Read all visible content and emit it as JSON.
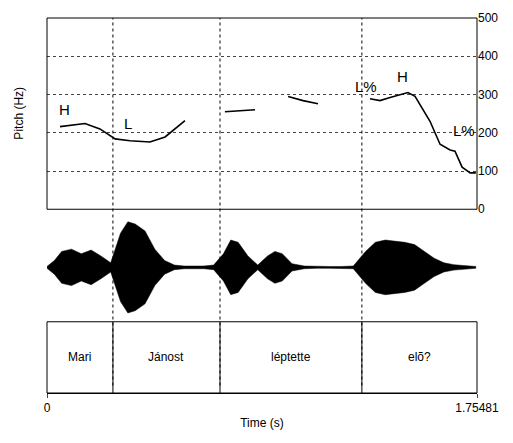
{
  "chart_data": {
    "type": "line",
    "x_label": "Time (s)",
    "y_label": "Pitch (Hz)",
    "xlim": [
      0,
      1.75481
    ],
    "xticks": [
      0,
      1.75481
    ],
    "ylim": [
      0,
      500
    ],
    "yticks": [
      0,
      100,
      200,
      300,
      400,
      500
    ],
    "grid": true,
    "color": "#000000",
    "x": [
      0.053,
      0.155,
      0.216,
      0.278,
      0.339,
      0.42,
      0.482,
      0.522,
      0.563,
      null,
      0.726,
      0.788,
      0.849,
      null,
      0.984,
      1.045,
      1.106,
      null,
      1.318,
      1.359,
      1.4,
      1.441,
      1.473,
      1.502,
      1.543,
      1.563,
      1.604,
      1.645,
      1.665,
      1.694,
      1.727,
      1.75
    ],
    "values": [
      216,
      224,
      210,
      184,
      179,
      176,
      189,
      210,
      232,
      null,
      255,
      258,
      260,
      null,
      295,
      284,
      276,
      null,
      289,
      284,
      292,
      300,
      305,
      295,
      250,
      230,
      170,
      155,
      152,
      110,
      95,
      95
    ],
    "annotations": [
      {
        "text": "H",
        "x": 0.07,
        "y": 262
      },
      {
        "text": "L",
        "x": 0.33,
        "y": 225
      },
      {
        "text": "L%",
        "x": 1.3,
        "y": 321
      },
      {
        "text": "H",
        "x": 1.45,
        "y": 347
      },
      {
        "text": "L%",
        "x": 1.7,
        "y": 205
      }
    ],
    "intervals": [
      {
        "label": "Mari",
        "start": 0,
        "end": 0.269
      },
      {
        "label": "Jánost",
        "start": 0.269,
        "end": 0.706
      },
      {
        "label": "léptette",
        "start": 0.706,
        "end": 1.285
      },
      {
        "label": "elõ?",
        "start": 1.285,
        "end": 1.75481
      }
    ],
    "waveform": {
      "time": [
        0.0,
        0.03,
        0.06,
        0.1,
        0.14,
        0.18,
        0.22,
        0.26,
        0.3,
        0.33,
        0.36,
        0.4,
        0.44,
        0.48,
        0.52,
        0.56,
        0.6,
        0.64,
        0.68,
        0.72,
        0.75,
        0.78,
        0.82,
        0.86,
        0.9,
        0.93,
        0.96,
        1.0,
        1.05,
        1.1,
        1.15,
        1.2,
        1.25,
        1.3,
        1.34,
        1.38,
        1.42,
        1.46,
        1.5,
        1.54,
        1.58,
        1.62,
        1.66,
        1.7,
        1.75
      ],
      "amplitude": [
        0.02,
        0.15,
        0.35,
        0.4,
        0.3,
        0.38,
        0.25,
        0.1,
        0.75,
        1.0,
        0.95,
        0.8,
        0.4,
        0.15,
        0.05,
        0.03,
        0.03,
        0.03,
        0.05,
        0.3,
        0.6,
        0.55,
        0.25,
        0.05,
        0.25,
        0.35,
        0.3,
        0.08,
        0.03,
        0.02,
        0.02,
        0.02,
        0.03,
        0.35,
        0.55,
        0.6,
        0.58,
        0.55,
        0.5,
        0.35,
        0.2,
        0.1,
        0.06,
        0.04,
        0.02
      ]
    }
  }
}
